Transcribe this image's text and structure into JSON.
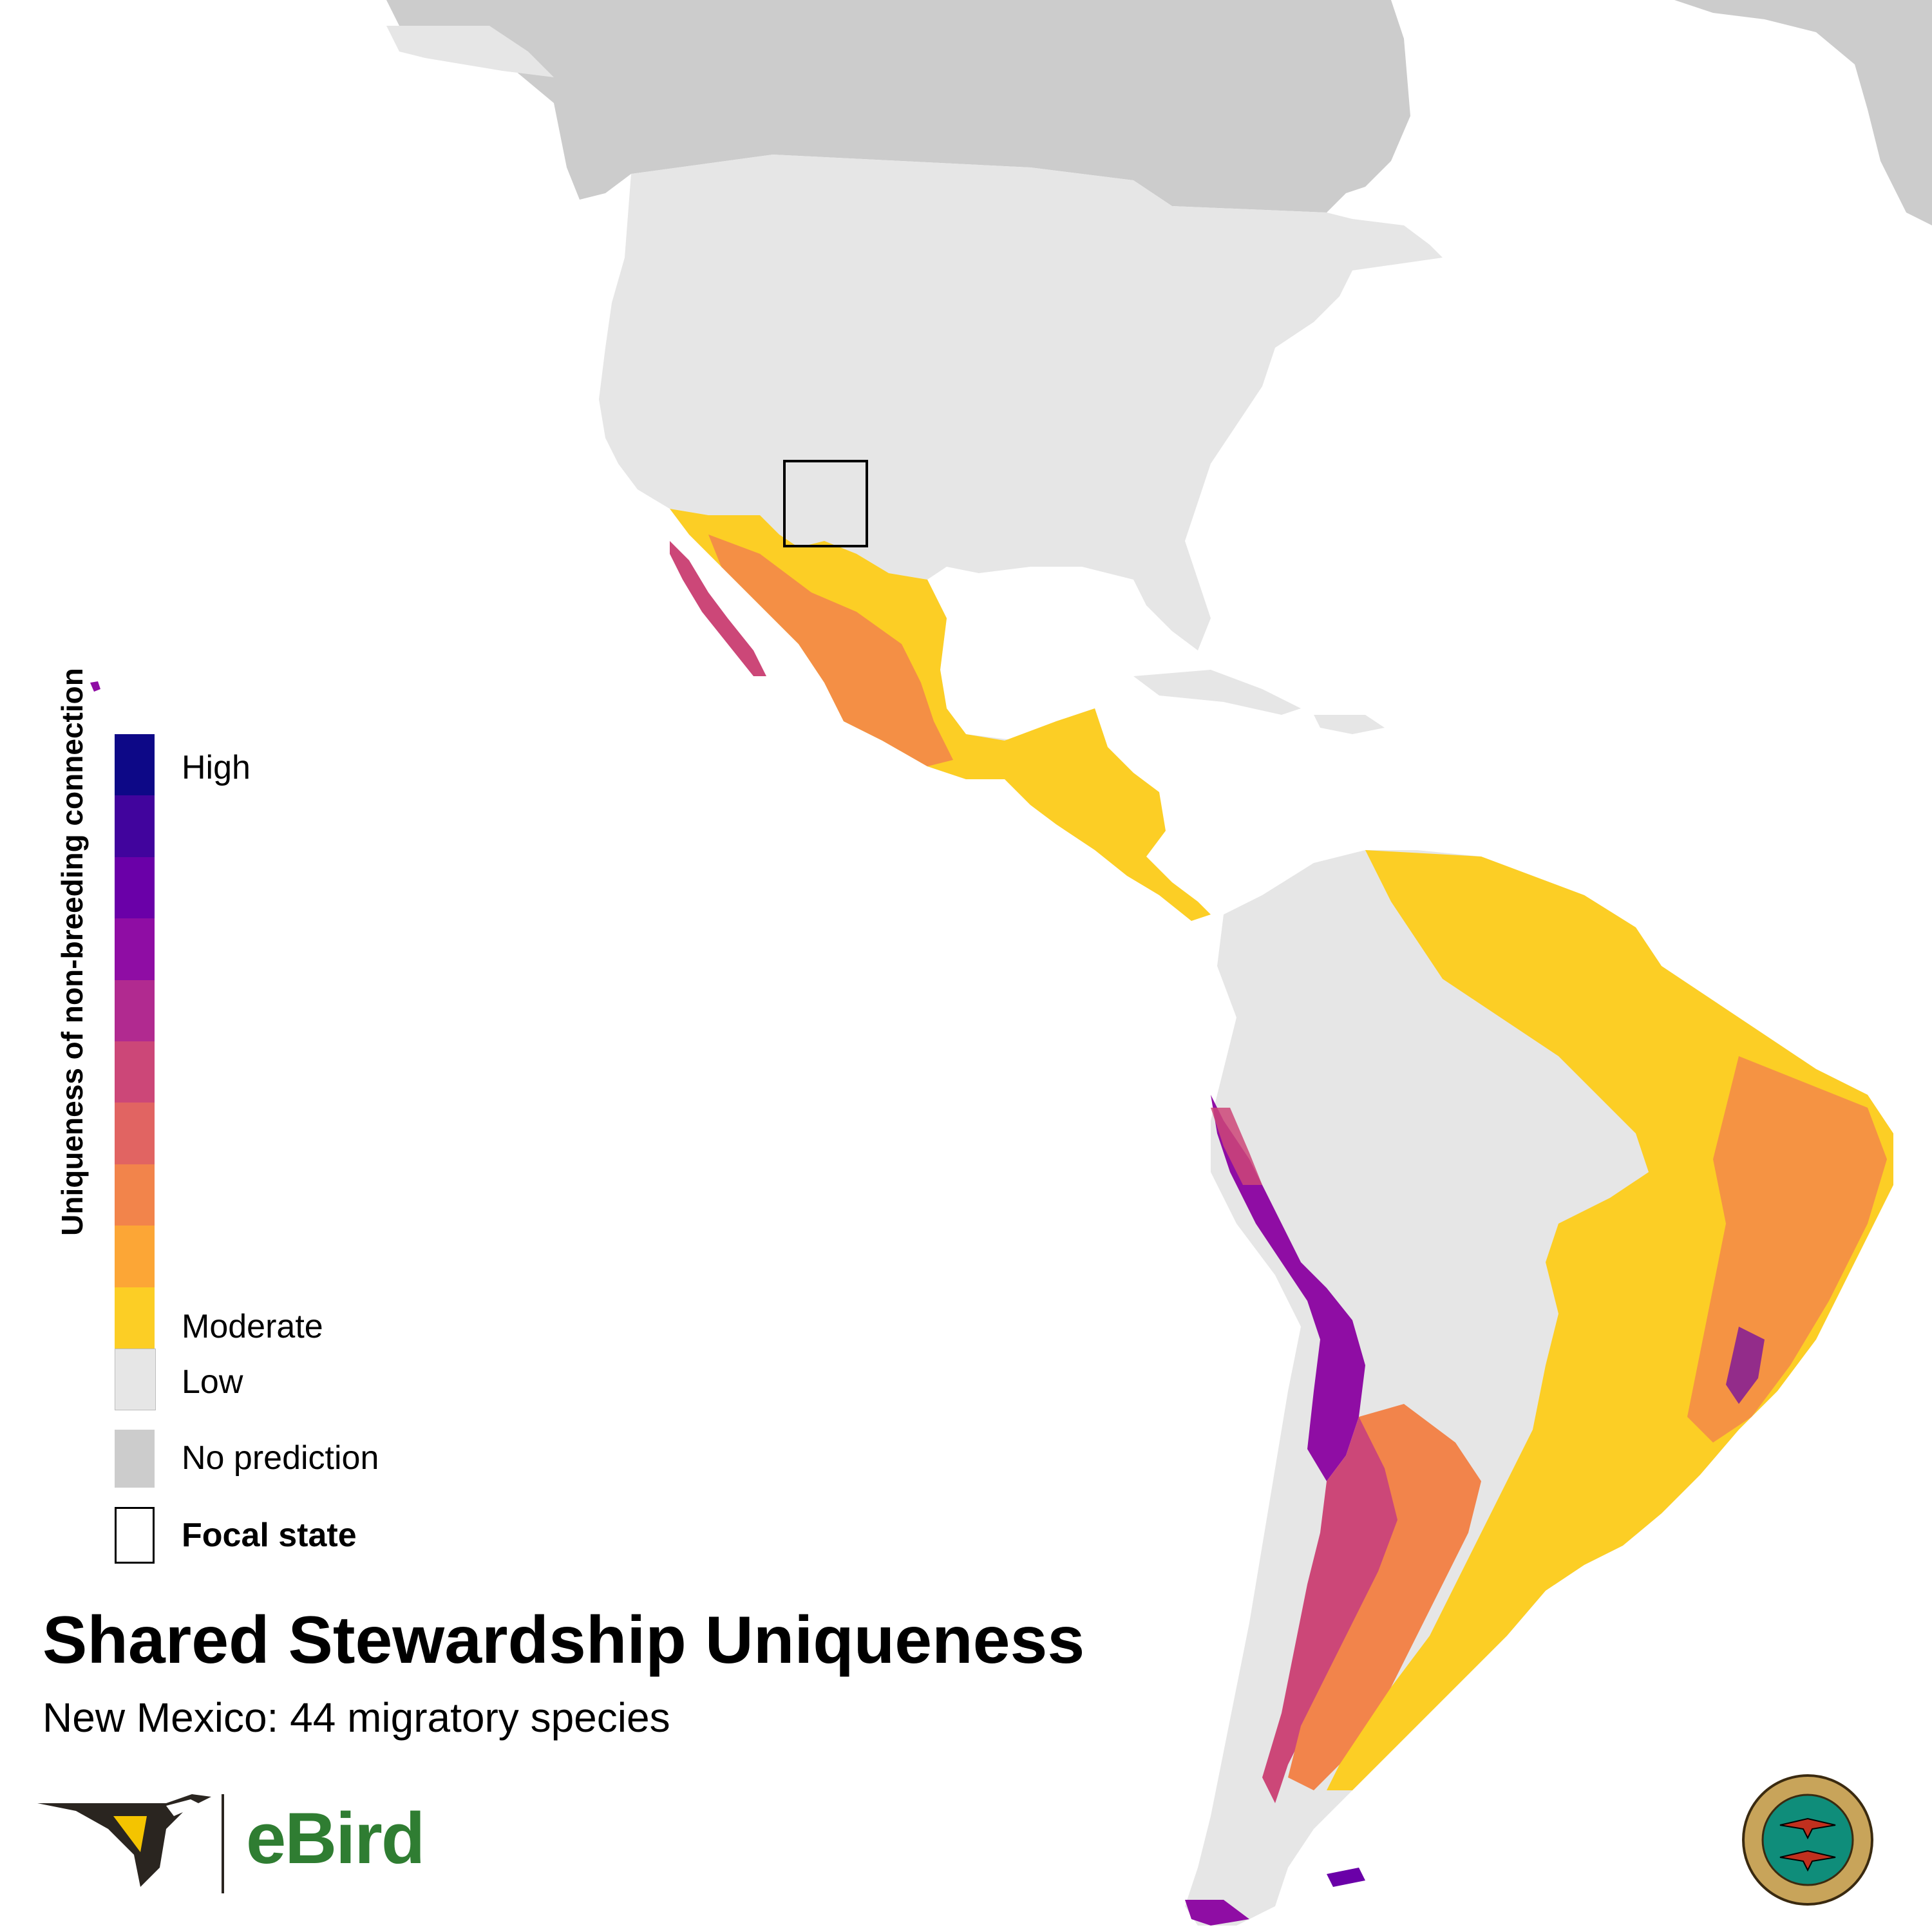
{
  "title": "Shared Stewardship Uniqueness",
  "subtitle": "New Mexico: 44 migratory species",
  "legend": {
    "axis_title": "Uniqueness of non-breeding connection",
    "labels": {
      "high": "High",
      "moderate": "Moderate",
      "low": "Low",
      "no_prediction": "No prediction",
      "focal_state": "Focal state"
    },
    "gradient": [
      "#0d0887",
      "#41049d",
      "#6a00a8",
      "#8f0da4",
      "#b12a90",
      "#cc4778",
      "#e16462",
      "#f2844b",
      "#fca636",
      "#fcce25"
    ],
    "low_color": "#e6e6e6",
    "no_prediction_color": "#cccccc"
  },
  "map": {
    "focal_state": "New Mexico",
    "land_color": "#e6e6e6",
    "no_prediction_color": "#cccccc",
    "moderate_color": "#fcce25",
    "high_color": "#0d0887"
  },
  "logos": {
    "ebird": "eBird",
    "partners_in_flight": "PARTNERS IN FLIGHT · PARTENAIRES D'ENVOL · COMPAÑEROS EN VUELO"
  }
}
